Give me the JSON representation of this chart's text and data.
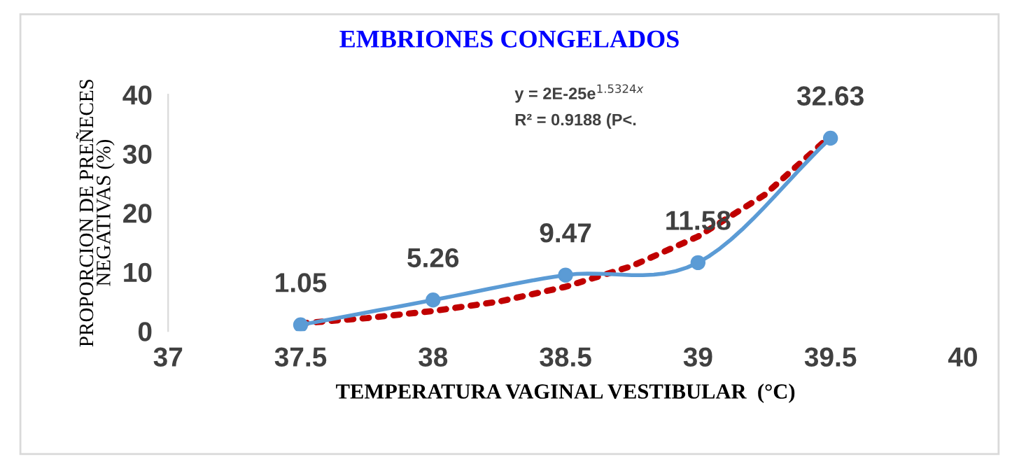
{
  "chart_data": {
    "type": "line",
    "title": "EMBRIONES CONGELADOS",
    "xlabel": "TEMPERATURA VAGINAL VESTIBULAR  (°C)",
    "ylabel": "PROPORCION DE PREÑECES\nNEGATIVAS (%)",
    "xlim": [
      37,
      40
    ],
    "xticks": [
      37,
      37.5,
      38,
      38.5,
      39,
      39.5,
      40
    ],
    "ylim": [
      0,
      40
    ],
    "yticks": [
      0,
      10,
      20,
      30,
      40
    ],
    "grid": false,
    "legend": false,
    "series": [
      {
        "x": [
          37.5,
          38,
          38.5,
          39,
          39.5
        ],
        "values": [
          1.05,
          5.26,
          9.47,
          11.58,
          32.63
        ],
        "color": "#5b9bd5",
        "marker": "circle",
        "line_style": "solid",
        "data_labels": true
      },
      {
        "type": "line",
        "x": [
          37.5,
          37.75,
          38,
          38.25,
          38.5,
          38.75,
          39,
          39.25,
          39.5
        ],
        "values": [
          1.3,
          2.2,
          3.4,
          5,
          7.5,
          11,
          16,
          23,
          33
        ],
        "color": "#c00000",
        "marker": "none",
        "line_style": "dotted"
      }
    ],
    "annotations": [
      "y = 2E-25e$^{1.5324x}$",
      "R² = 0.9188 (P<."
    ]
  }
}
